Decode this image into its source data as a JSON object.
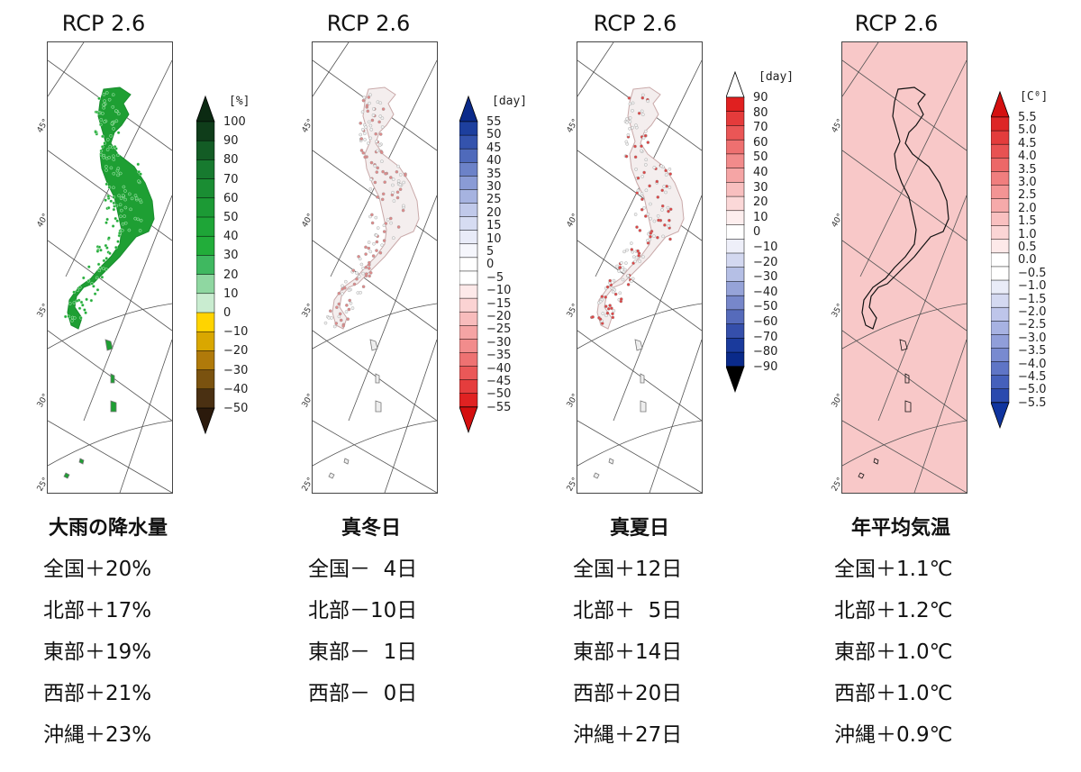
{
  "panels": [
    {
      "id": "heavy-rain",
      "scenario": "RCP 2.6",
      "title": "大雨の降水量",
      "unit": "[%]",
      "scale_type": "diverging-green-brown",
      "ticks": [
        "100",
        "90",
        "80",
        "70",
        "60",
        "50",
        "40",
        "30",
        "20",
        "10",
        "0",
        "−10",
        "−20",
        "−30",
        "−40",
        "−50"
      ],
      "colors": [
        "#0b2a12",
        "#0f3d1a",
        "#135c25",
        "#177a2f",
        "#1a8d33",
        "#1c9a35",
        "#1ea537",
        "#22ad3a",
        "#3fb860",
        "#8fd7a1",
        "#c9ecd0",
        "#ffd400",
        "#d9a700",
        "#b07a0a",
        "#7a520f",
        "#4a3012",
        "#2b1a0c"
      ],
      "dot_color": "#1e9f33",
      "regions": [
        {
          "name": "全国",
          "value": "＋20%"
        },
        {
          "name": "北部",
          "value": "＋17%"
        },
        {
          "name": "東部",
          "value": "＋19%"
        },
        {
          "name": "西部",
          "value": "＋21%"
        },
        {
          "name": "沖縄",
          "value": "＋23%"
        }
      ]
    },
    {
      "id": "winter-days",
      "scenario": "RCP 2.6",
      "title": "真冬日",
      "unit": "[day]",
      "scale_type": "diverging-blue-red",
      "ticks": [
        "55",
        "50",
        "45",
        "40",
        "35",
        "30",
        "25",
        "20",
        "15",
        "10",
        "5",
        "0",
        "−5",
        "−10",
        "−15",
        "−20",
        "−25",
        "−30",
        "−35",
        "−40",
        "−45",
        "−50",
        "−55"
      ],
      "colors": [
        "#0a2a8a",
        "#1d3f9e",
        "#3453ad",
        "#4f6abb",
        "#6c82c8",
        "#8a9bd5",
        "#a6b3e0",
        "#c0c9ea",
        "#d6dcf2",
        "#e8ebf8",
        "#f5f6fc",
        "#ffffff",
        "#ffffff",
        "#fde9e9",
        "#fbd3d3",
        "#f8bcbc",
        "#f5a4a4",
        "#f28c8c",
        "#ee7272",
        "#ea5858",
        "#e53d3d",
        "#e02222",
        "#d40f0f"
      ],
      "dot_color": "#e08a8a",
      "regions": [
        {
          "name": "全国",
          "value": "－  4日"
        },
        {
          "name": "北部",
          "value": "－10日"
        },
        {
          "name": "東部",
          "value": "－  1日"
        },
        {
          "name": "西部",
          "value": "－  0日"
        }
      ]
    },
    {
      "id": "summer-days",
      "scenario": "RCP 2.6",
      "title": "真夏日",
      "unit": "[day]",
      "scale_type": "diverging-red-blue",
      "ticks": [
        "90",
        "80",
        "70",
        "60",
        "50",
        "40",
        "30",
        "20",
        "10",
        "0",
        "−10",
        "−20",
        "−30",
        "−40",
        "−50",
        "−60",
        "−70",
        "−80",
        "−90"
      ],
      "colors": [
        "#ffffff",
        "#e02020",
        "#e53b3b",
        "#ea5656",
        "#ee7070",
        "#f28b8b",
        "#f5a5a5",
        "#f8bfbf",
        "#fbd8d8",
        "#fdeeee",
        "#ffffff",
        "#eeeff9",
        "#d3d8f0",
        "#b5bfe5",
        "#96a3d8",
        "#7787ca",
        "#566bbb",
        "#354fab",
        "#1a3a9c",
        "#0a2a8a",
        "#000000"
      ],
      "dot_color": "#e04545",
      "regions": [
        {
          "name": "全国",
          "value": "＋12日"
        },
        {
          "name": "北部",
          "value": "＋  5日"
        },
        {
          "name": "東部",
          "value": "＋14日"
        },
        {
          "name": "西部",
          "value": "＋20日"
        },
        {
          "name": "沖縄",
          "value": "＋27日"
        }
      ]
    },
    {
      "id": "annual-temp",
      "scenario": "RCP 2.6",
      "title": "年平均気温",
      "unit": "[C⁰]",
      "scale_type": "diverging-red-blue",
      "ticks": [
        "5.5",
        "5.0",
        "4.5",
        "4.0",
        "3.5",
        "3.0",
        "2.5",
        "2.0",
        "1.5",
        "1.0",
        "0.5",
        "0.0",
        "−0.5",
        "−1.0",
        "−1.5",
        "−2.0",
        "−2.5",
        "−3.0",
        "−3.5",
        "−4.0",
        "−4.5",
        "−5.0",
        "−5.5"
      ],
      "colors": [
        "#d41010",
        "#dd2626",
        "#e33c3c",
        "#e85252",
        "#ec6868",
        "#f07e7e",
        "#f39494",
        "#f6aaaa",
        "#f9c0c0",
        "#fbd5d5",
        "#fde9e9",
        "#ffffff",
        "#ffffff",
        "#e9ecf8",
        "#d4d9f1",
        "#bec5ea",
        "#a7b2e2",
        "#909ed9",
        "#788ad0",
        "#5f75c6",
        "#4560bb",
        "#2a4aae",
        "#0f349f"
      ],
      "field_color": "#f8c8c8",
      "regions": [
        {
          "name": "全国",
          "value": "＋1.1℃"
        },
        {
          "name": "北部",
          "value": "＋1.2℃"
        },
        {
          "name": "東部",
          "value": "＋1.0℃"
        },
        {
          "name": "西部",
          "value": "＋1.0℃"
        },
        {
          "name": "沖縄",
          "value": "＋0.9℃"
        }
      ]
    }
  ],
  "lat_labels": [
    "45",
    "40",
    "35",
    "30",
    "25"
  ]
}
